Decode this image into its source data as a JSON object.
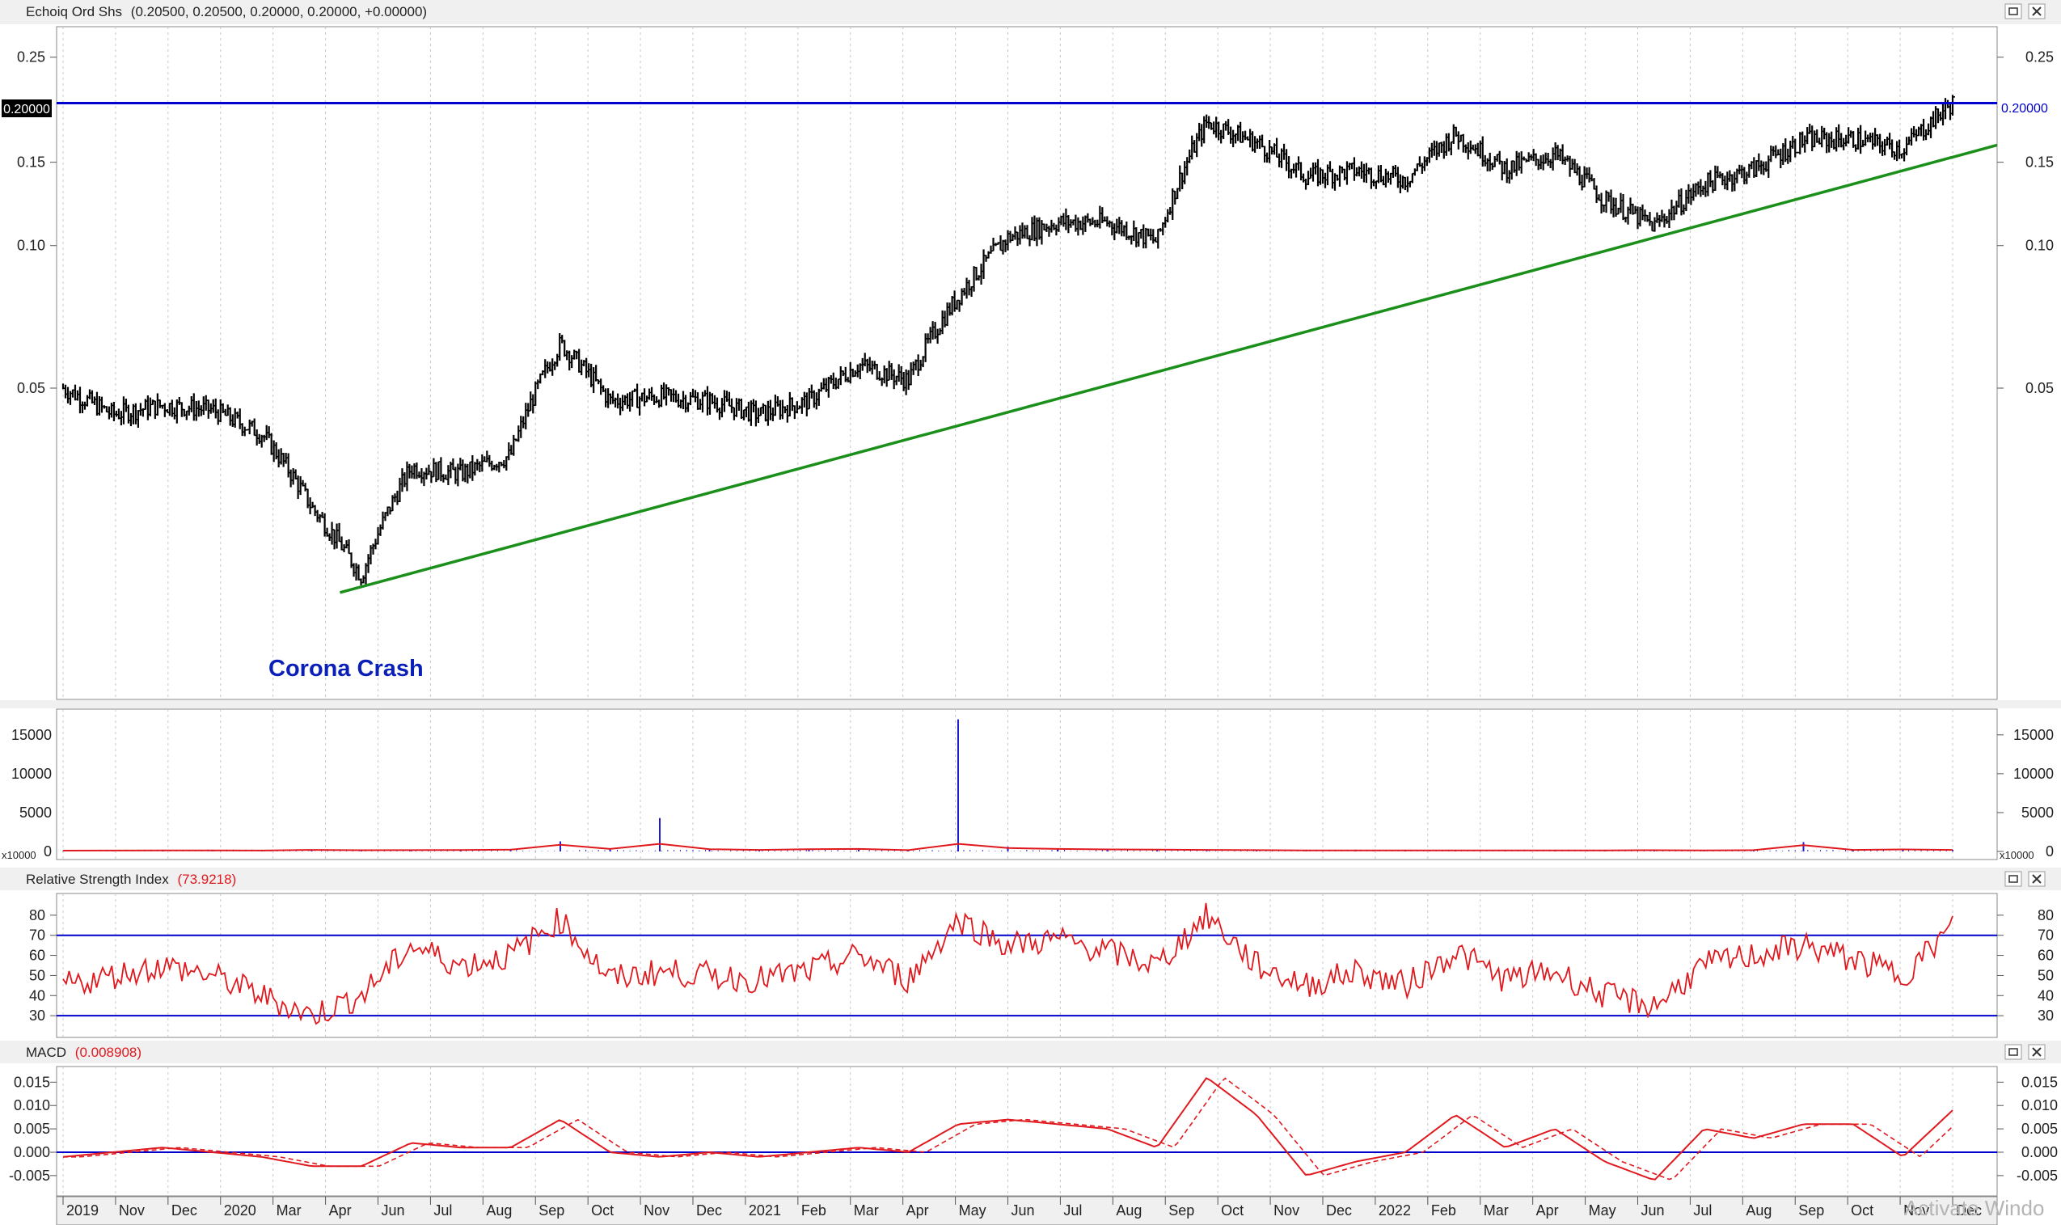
{
  "window": {
    "title": "Echoiq Ord Shs",
    "ohlc_text": "(0.20500, 0.20500, 0.20000, 0.20000, +0.00000)",
    "buttons": [
      "restore",
      "close"
    ]
  },
  "colors": {
    "price_bar": "#000000",
    "resistance_line": "#0000cc",
    "trend_line": "#1a8f1a",
    "annotation": "#0a1fb8",
    "indicator_line": "#e0191e",
    "volume_bar": "#1f1fd0",
    "grid": "#c8c8c8",
    "chrome": "#f0f0f0"
  },
  "price_panel": {
    "scale": "log",
    "y_ticks": [
      "0.25",
      "0.15",
      "0.10",
      "0.05"
    ],
    "y_tick_values": [
      0.25,
      0.15,
      0.1,
      0.05
    ],
    "y_range": [
      0.011,
      0.29
    ],
    "last_price_label_left": "0.20000",
    "last_price_label_right": "0.20000",
    "resistance_level": 0.2,
    "annotation": "Corona Crash",
    "trend_line": {
      "start": [
        "2020-03",
        0.0185
      ],
      "end": [
        "2022-12",
        0.163
      ]
    }
  },
  "volume_panel": {
    "y_ticks": [
      "15000",
      "10000",
      "5000",
      "0"
    ],
    "multiplier_label": "x10000",
    "y_max": 18000
  },
  "rsi_panel": {
    "title": "Relative Strength Index",
    "value": "(73.9218)",
    "y_ticks": [
      "80",
      "70",
      "60",
      "50",
      "40",
      "30"
    ],
    "levels": [
      70,
      30
    ],
    "y_range": [
      20,
      90
    ]
  },
  "macd_panel": {
    "title": "MACD",
    "value": "(0.008908)",
    "y_ticks": [
      "0.015",
      "0.010",
      "0.005",
      "0.000",
      "-0.005"
    ],
    "y_range": [
      -0.009,
      0.018
    ]
  },
  "x_axis": {
    "labels": [
      "2019",
      "Nov",
      "Dec",
      "2020",
      "Mar",
      "Apr",
      "Jun",
      "Jul",
      "Aug",
      "Sep",
      "Oct",
      "Nov",
      "Dec",
      "2021",
      "Feb",
      "Mar",
      "Apr",
      "May",
      "Jun",
      "Jul",
      "Aug",
      "Sep",
      "Oct",
      "Nov",
      "Dec",
      "2022",
      "Feb",
      "Mar",
      "Apr",
      "May",
      "Jun",
      "Jul",
      "Aug",
      "Sep",
      "Oct",
      "Nov",
      "Dec"
    ]
  },
  "watermark": "Activate Windo",
  "chart_data": {
    "type": "line",
    "title": "Echoiq Ord Shs",
    "x": [
      "2019-10",
      "2019-11",
      "2019-12",
      "2020-01",
      "2020-02",
      "2020-03",
      "2020-04",
      "2020-05",
      "2020-06",
      "2020-07",
      "2020-08",
      "2020-09",
      "2020-10",
      "2020-11",
      "2020-12",
      "2021-01",
      "2021-02",
      "2021-03",
      "2021-04",
      "2021-05",
      "2021-06",
      "2021-07",
      "2021-08",
      "2021-09",
      "2021-10",
      "2021-11",
      "2021-12",
      "2022-01",
      "2022-02",
      "2022-03",
      "2022-04",
      "2022-05",
      "2022-06",
      "2022-07",
      "2022-08",
      "2022-09",
      "2022-10",
      "2022-11",
      "2022-12"
    ],
    "series": [
      {
        "name": "Price",
        "values": [
          0.05,
          0.044,
          0.046,
          0.045,
          0.04,
          0.028,
          0.02,
          0.034,
          0.033,
          0.036,
          0.062,
          0.047,
          0.048,
          0.047,
          0.044,
          0.047,
          0.056,
          0.052,
          0.078,
          0.104,
          0.112,
          0.112,
          0.102,
          0.182,
          0.165,
          0.14,
          0.144,
          0.138,
          0.172,
          0.145,
          0.156,
          0.125,
          0.11,
          0.135,
          0.145,
          0.167,
          0.168,
          0.16,
          0.2
        ]
      },
      {
        "name": "Volume",
        "values": [
          40,
          50,
          80,
          70,
          60,
          200,
          120,
          150,
          180,
          250,
          1300,
          400,
          4300,
          350,
          200,
          350,
          400,
          150,
          17000,
          600,
          400,
          300,
          250,
          200,
          150,
          100,
          100,
          100,
          100,
          100,
          100,
          100,
          120,
          100,
          150,
          1200,
          200,
          300,
          200
        ]
      },
      {
        "name": "RSI",
        "values": [
          45,
          50,
          55,
          50,
          40,
          30,
          40,
          65,
          55,
          60,
          78,
          48,
          52,
          50,
          48,
          52,
          60,
          48,
          78,
          65,
          68,
          62,
          55,
          80,
          55,
          45,
          52,
          45,
          62,
          48,
          52,
          40,
          35,
          55,
          60,
          65,
          58,
          50,
          74
        ]
      },
      {
        "name": "MACD",
        "values": [
          -0.001,
          0.0,
          0.001,
          0.0,
          -0.001,
          -0.003,
          -0.003,
          0.002,
          0.001,
          0.001,
          0.007,
          0.0,
          -0.001,
          0.0,
          -0.001,
          0.0,
          0.001,
          0.0,
          0.006,
          0.007,
          0.006,
          0.005,
          0.001,
          0.016,
          0.008,
          -0.005,
          -0.002,
          0.0,
          0.008,
          0.001,
          0.005,
          -0.002,
          -0.006,
          0.005,
          0.003,
          0.006,
          0.006,
          -0.001,
          0.009
        ]
      }
    ]
  }
}
